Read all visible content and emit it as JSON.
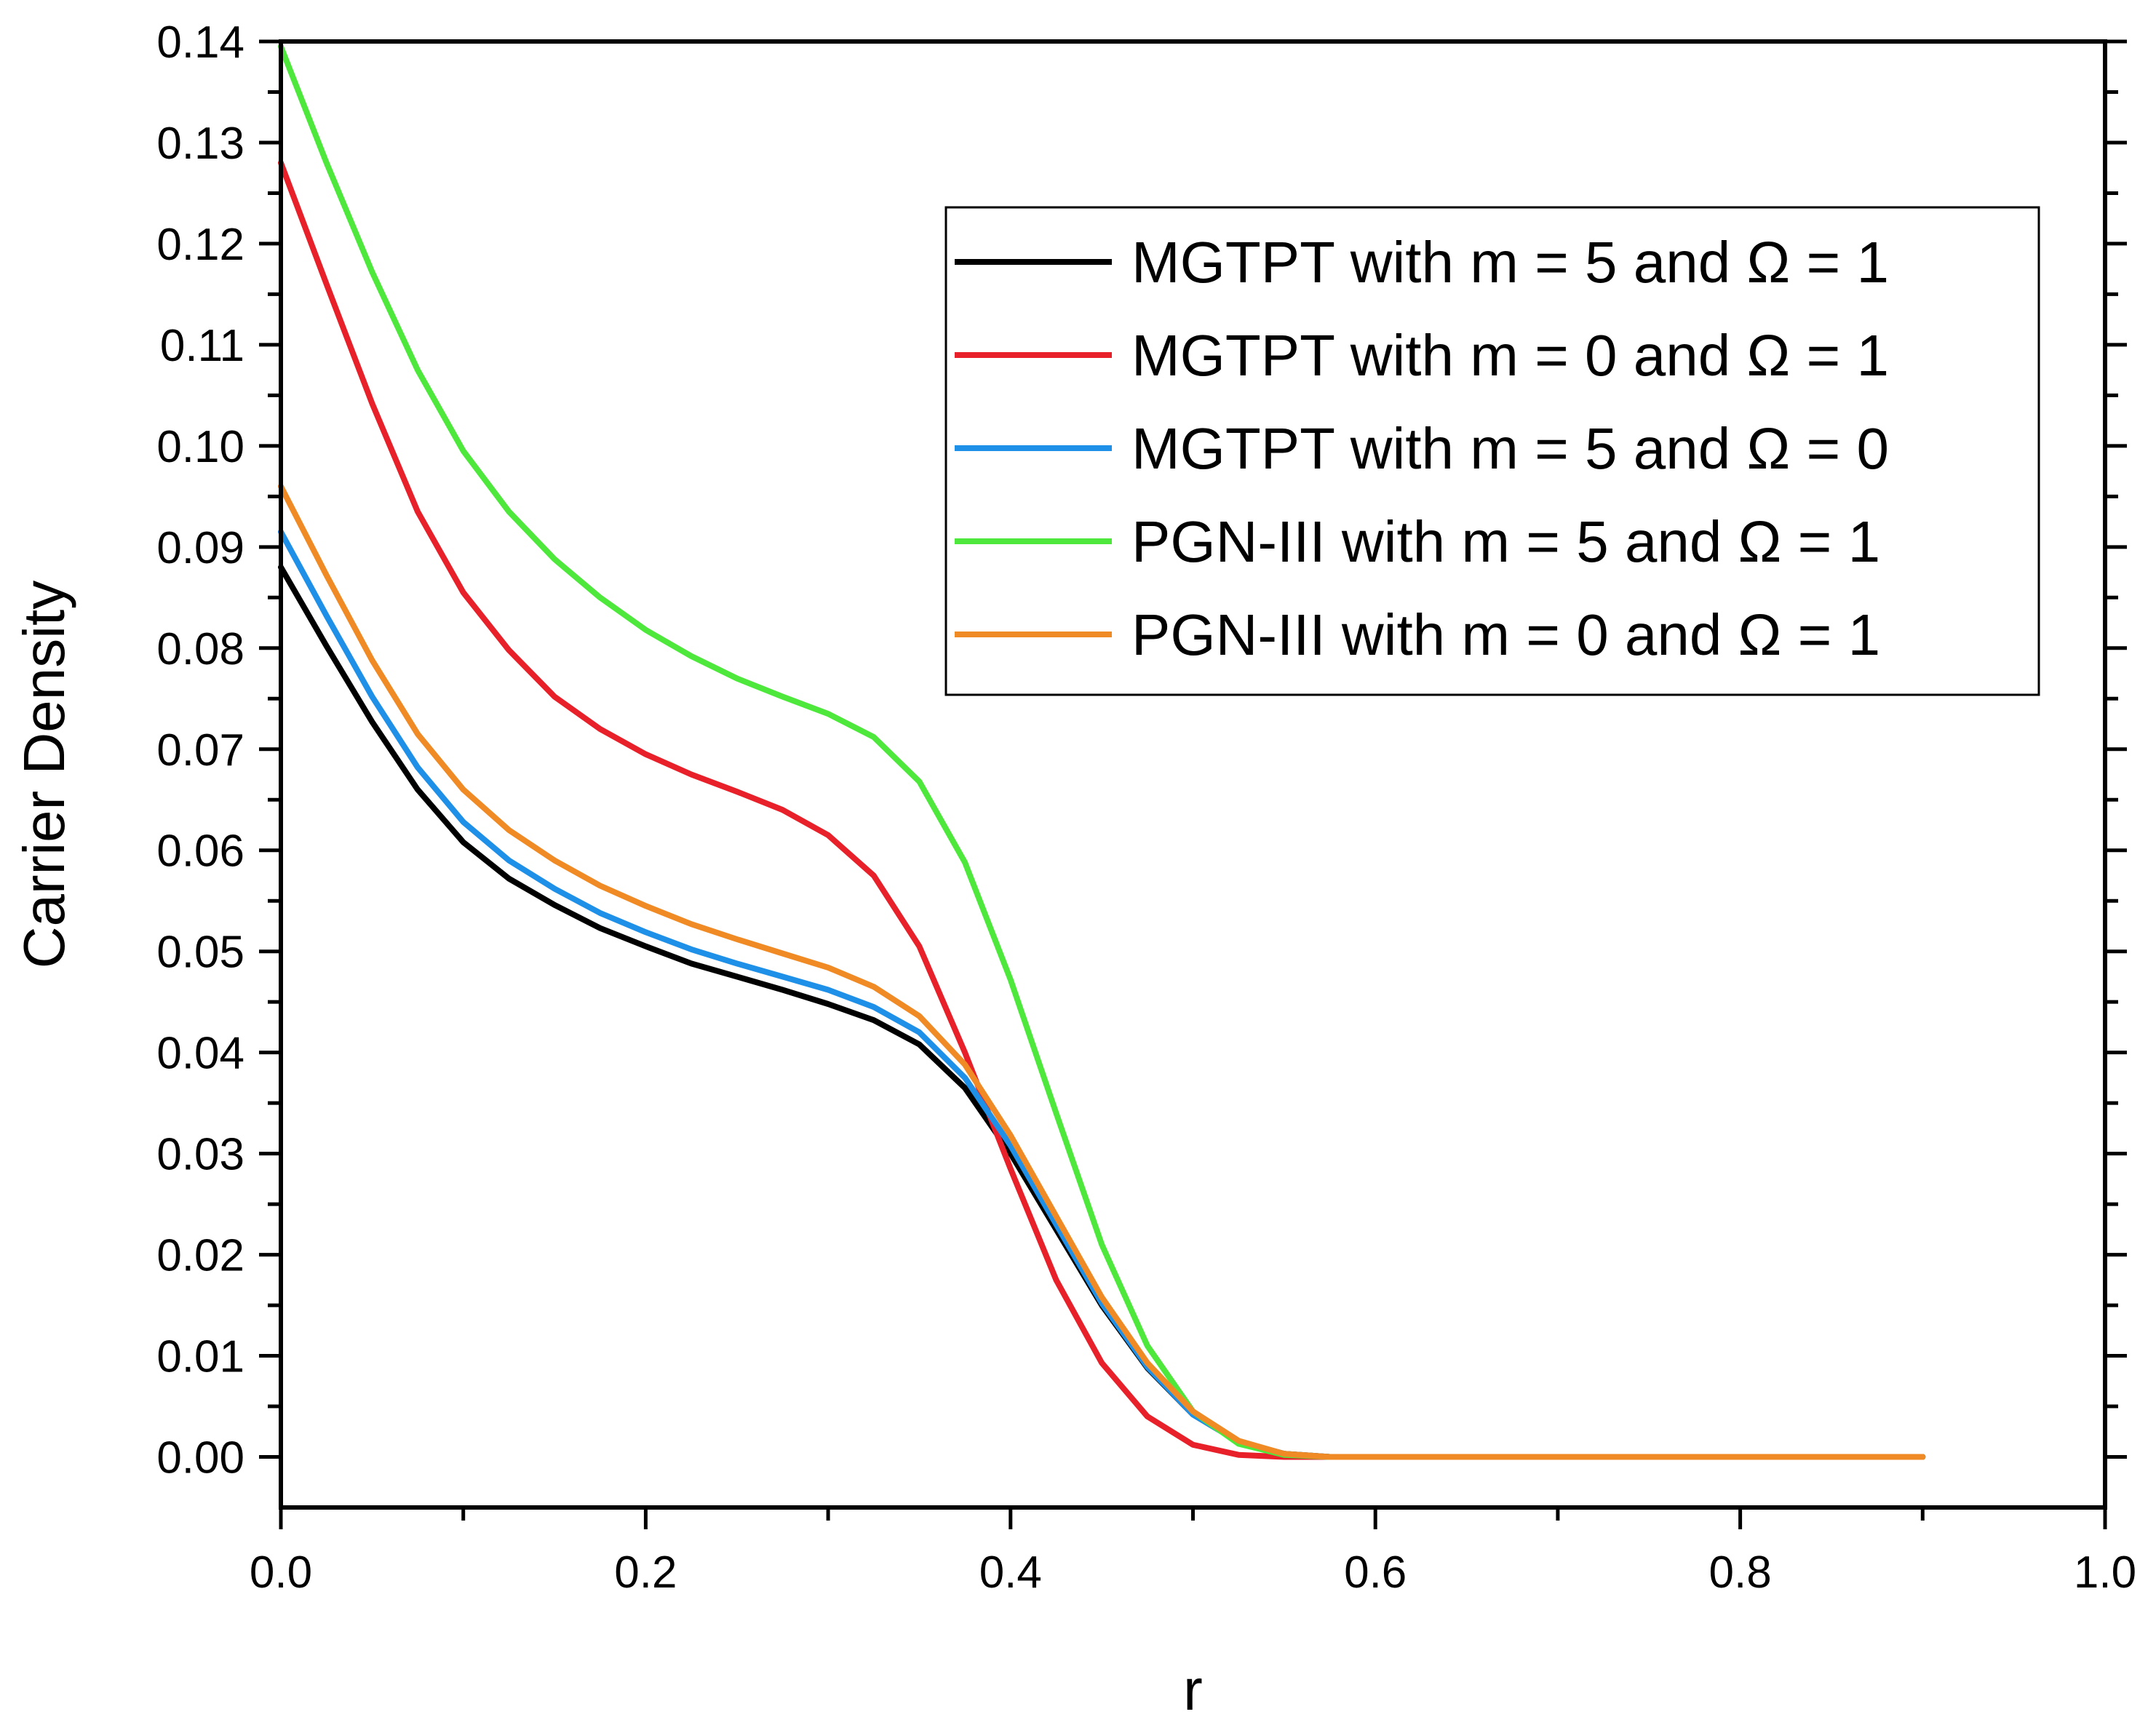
{
  "chart_data": {
    "type": "line",
    "title": "",
    "xlabel": "r",
    "ylabel": "Carrier Density",
    "xlim": [
      0.0,
      1.0
    ],
    "ylim": [
      -0.005,
      0.14
    ],
    "xticks": [
      0.0,
      0.2,
      0.4,
      0.6,
      0.8,
      1.0
    ],
    "xtick_labels": [
      "0.0",
      "0.2",
      "0.4",
      "0.6",
      "0.8",
      "1.0"
    ],
    "yticks": [
      0.0,
      0.01,
      0.02,
      0.03,
      0.04,
      0.05,
      0.06,
      0.07,
      0.08,
      0.09,
      0.1,
      0.11,
      0.12,
      0.13,
      0.14
    ],
    "ytick_labels": [
      "0.00",
      "0.01",
      "0.02",
      "0.03",
      "0.04",
      "0.05",
      "0.06",
      "0.07",
      "0.08",
      "0.09",
      "0.10",
      "0.11",
      "0.12",
      "0.13",
      "0.14"
    ],
    "grid": false,
    "legend_position": "top-right",
    "x": [
      0.0,
      0.025,
      0.05,
      0.075,
      0.1,
      0.125,
      0.15,
      0.175,
      0.2,
      0.225,
      0.25,
      0.275,
      0.3,
      0.325,
      0.35,
      0.375,
      0.4,
      0.425,
      0.45,
      0.475,
      0.5,
      0.525,
      0.55,
      0.575,
      0.6,
      0.65,
      0.7,
      0.75,
      0.8,
      0.85,
      0.9
    ],
    "series": [
      {
        "name": "MGTPT with m = 5 and Ω = 1",
        "color": "#000000",
        "values": [
          0.088,
          0.0802,
          0.0727,
          0.066,
          0.0608,
          0.0572,
          0.0546,
          0.0523,
          0.0505,
          0.0488,
          0.0475,
          0.0462,
          0.0448,
          0.0432,
          0.0408,
          0.0365,
          0.03,
          0.0225,
          0.015,
          0.0088,
          0.0042,
          0.0015,
          0.0003,
          0.0,
          0.0,
          0.0,
          0.0,
          0.0,
          0.0,
          0.0,
          0.0
        ]
      },
      {
        "name": "MGTPT with m = 0 and Ω = 1",
        "color": "#e8202a",
        "values": [
          0.128,
          0.116,
          0.1042,
          0.0935,
          0.0855,
          0.0798,
          0.0752,
          0.072,
          0.0695,
          0.0675,
          0.0658,
          0.064,
          0.0615,
          0.0575,
          0.0505,
          0.04,
          0.0285,
          0.0175,
          0.0093,
          0.004,
          0.0012,
          0.0002,
          0.0,
          0.0,
          0.0,
          0.0,
          0.0,
          0.0,
          0.0,
          0.0,
          0.0
        ]
      },
      {
        "name": "MGTPT with m = 5 and Ω = 0",
        "color": "#1e90e8",
        "values": [
          0.0915,
          0.0832,
          0.0752,
          0.0682,
          0.0628,
          0.059,
          0.0562,
          0.0538,
          0.0519,
          0.0502,
          0.0488,
          0.0475,
          0.0462,
          0.0445,
          0.042,
          0.0375,
          0.0308,
          0.023,
          0.0152,
          0.0089,
          0.0042,
          0.0015,
          0.0003,
          0.0,
          0.0,
          0.0,
          0.0,
          0.0,
          0.0,
          0.0,
          0.0
        ]
      },
      {
        "name": "PGN-III with m = 5 and Ω = 1",
        "color": "#4ee83c",
        "values": [
          0.1395,
          0.128,
          0.1172,
          0.1075,
          0.0995,
          0.0935,
          0.0888,
          0.085,
          0.0818,
          0.0792,
          0.077,
          0.0752,
          0.0735,
          0.0712,
          0.0668,
          0.0588,
          0.0472,
          0.034,
          0.021,
          0.011,
          0.0045,
          0.0013,
          0.0002,
          0.0,
          0.0,
          0.0,
          0.0,
          0.0,
          0.0,
          0.0,
          0.0
        ]
      },
      {
        "name": "PGN-III with m = 0 and Ω = 1",
        "color": "#f08a24",
        "values": [
          0.096,
          0.0872,
          0.0788,
          0.0715,
          0.066,
          0.062,
          0.059,
          0.0565,
          0.0545,
          0.0527,
          0.0512,
          0.0498,
          0.0484,
          0.0465,
          0.0436,
          0.0388,
          0.0318,
          0.0238,
          0.0158,
          0.0093,
          0.0045,
          0.0016,
          0.0003,
          0.0,
          0.0,
          0.0,
          0.0,
          0.0,
          0.0,
          0.0,
          0.0
        ]
      }
    ]
  }
}
